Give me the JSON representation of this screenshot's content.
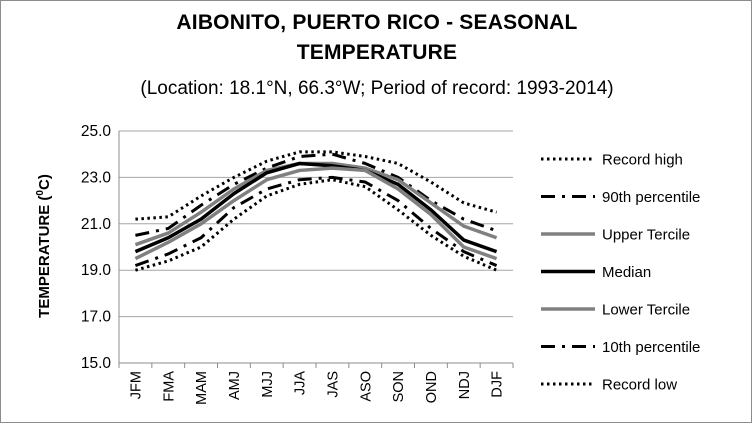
{
  "chart_data": {
    "type": "line",
    "title_line1": "AIBONITO, PUERTO RICO - SEASONAL",
    "title_line2": "TEMPERATURE",
    "subtitle": "(Location: 18.1°N, 66.3°W; Period of record: 1993-2014)",
    "ylabel_main": "TEMPERATURE (",
    "ylabel_sup": "0",
    "ylabel_end": "C)",
    "ylim": [
      15.0,
      25.0
    ],
    "yticks": [
      "15.0",
      "17.0",
      "19.0",
      "21.0",
      "23.0",
      "25.0"
    ],
    "grid": true,
    "legend_position": "right",
    "categories": [
      "JFM",
      "FMA",
      "MAM",
      "AMJ",
      "MJJ",
      "JJA",
      "JAS",
      "ASO",
      "SON",
      "OND",
      "NDJ",
      "DJF"
    ],
    "series": [
      {
        "name": "Record high",
        "values": [
          21.2,
          21.3,
          22.2,
          23.0,
          23.7,
          24.1,
          24.1,
          23.9,
          23.6,
          22.8,
          21.9,
          21.5
        ],
        "color": "#000000",
        "style": "dotted"
      },
      {
        "name": "90th percentile",
        "values": [
          20.5,
          20.8,
          21.8,
          22.7,
          23.4,
          23.9,
          24.0,
          23.6,
          23.0,
          22.0,
          21.2,
          20.7
        ],
        "color": "#000000",
        "style": "dashdot"
      },
      {
        "name": "Upper Tercile",
        "values": [
          20.1,
          20.6,
          21.5,
          22.5,
          23.3,
          23.6,
          23.6,
          23.4,
          22.9,
          21.9,
          20.9,
          20.4
        ],
        "color": "#808080",
        "style": "solid"
      },
      {
        "name": "Median",
        "values": [
          19.8,
          20.4,
          21.2,
          22.3,
          23.2,
          23.6,
          23.5,
          23.3,
          22.7,
          21.6,
          20.3,
          19.8
        ],
        "color": "#000000",
        "style": "solid"
      },
      {
        "name": "Lower Tercile",
        "values": [
          19.5,
          20.2,
          21.0,
          22.0,
          22.9,
          23.3,
          23.4,
          23.3,
          22.5,
          21.4,
          20.0,
          19.5
        ],
        "color": "#808080",
        "style": "solid"
      },
      {
        "name": "10th percentile",
        "values": [
          19.2,
          19.7,
          20.4,
          21.7,
          22.5,
          22.9,
          23.0,
          22.8,
          22.0,
          20.8,
          19.8,
          19.2
        ],
        "color": "#000000",
        "style": "dashdot"
      },
      {
        "name": "Record low",
        "values": [
          19.0,
          19.4,
          20.0,
          21.2,
          22.2,
          22.7,
          22.9,
          22.6,
          21.6,
          20.5,
          19.6,
          19.0
        ],
        "color": "#000000",
        "style": "dotted"
      }
    ]
  }
}
